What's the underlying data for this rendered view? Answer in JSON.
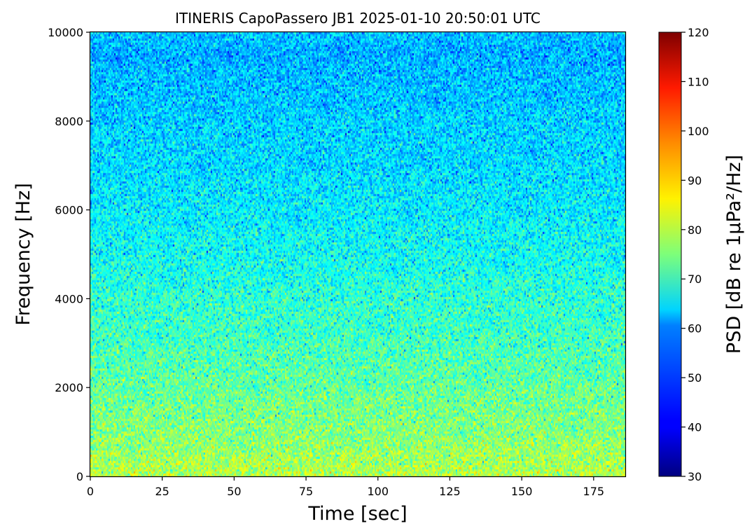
{
  "chart_data": {
    "type": "heatmap",
    "title": "ITINERIS CapoPassero JB1 2025-01-10 20:50:01 UTC",
    "xlabel": "Time [sec]",
    "ylabel": "Frequency [Hz]",
    "xlim": [
      0,
      186
    ],
    "ylim": [
      0,
      10000
    ],
    "xticks": [
      "0",
      "25",
      "50",
      "75",
      "100",
      "125",
      "150",
      "175"
    ],
    "xtick_values": [
      0,
      25,
      50,
      75,
      100,
      125,
      150,
      175
    ],
    "yticks": [
      "0",
      "2000",
      "4000",
      "6000",
      "8000",
      "10000"
    ],
    "ytick_values": [
      0,
      2000,
      4000,
      6000,
      8000,
      10000
    ],
    "colormap": "jet",
    "colorbar": {
      "label": "PSD [dB re 1μPa²/Hz]",
      "range": [
        30,
        120
      ],
      "ticks": [
        "30",
        "40",
        "50",
        "60",
        "70",
        "80",
        "90",
        "100",
        "110",
        "120"
      ],
      "tick_values": [
        30,
        40,
        50,
        60,
        70,
        80,
        90,
        100,
        110,
        120
      ]
    },
    "psd_profile": {
      "frequency_hz": [
        0,
        500,
        1000,
        2000,
        3000,
        4000,
        5000,
        6000,
        7000,
        8000,
        9000,
        9500,
        10000
      ],
      "mean_psd_db": [
        80,
        78,
        76,
        73,
        70,
        68,
        65,
        63,
        61,
        60,
        58,
        57,
        59
      ],
      "spread_db": 5
    },
    "grid": false
  }
}
